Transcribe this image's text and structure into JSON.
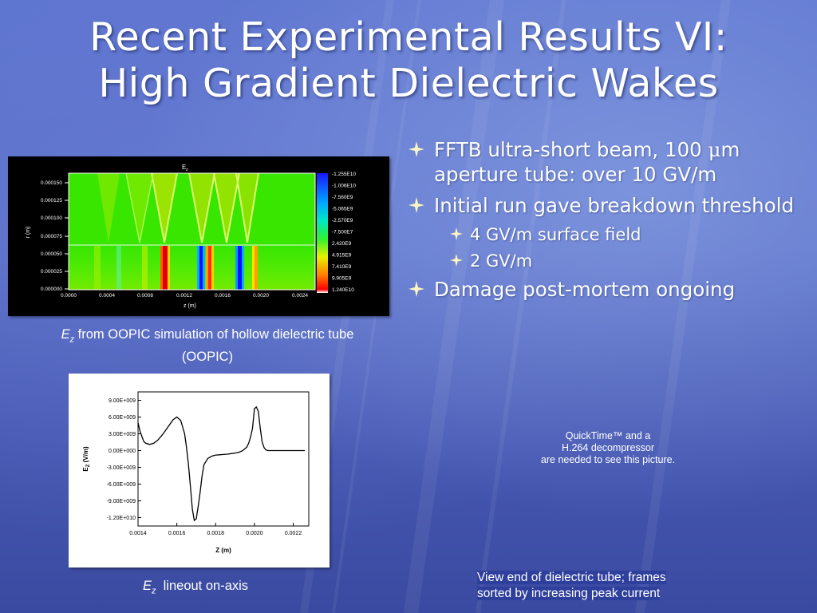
{
  "slide": {
    "title_line1": "Recent Experimental Results VI:",
    "title_line2": "High Gradient Dielectric Wakes"
  },
  "bullets": [
    {
      "level": 1,
      "text_before": "FFTB ultra-short beam, 100 ",
      "text_mu": "μ",
      "text_after": "m aperture tube: over 10 GV/m"
    },
    {
      "level": 1,
      "text": "Initial run gave breakdown threshold"
    },
    {
      "level": 2,
      "text": "4 GV/m surface field"
    },
    {
      "level": 2,
      "text": "2 GV/m"
    },
    {
      "level": 1,
      "text": "Damage post-mortem ongoing"
    }
  ],
  "sim_plot": {
    "title_main": "E",
    "title_sub": "z",
    "xlabel": "z (m)",
    "ylabel": "r (m)",
    "x_ticks": [
      "0.0000",
      "0.0004",
      "0.0008",
      "0.0012",
      "0.0016",
      "0.0020",
      "0.0024"
    ],
    "y_ticks": [
      "0.000150",
      "0.000125",
      "0.000100",
      "0.000075",
      "0.000050",
      "0.000025",
      "0.000000"
    ],
    "colorbar_labels": [
      "-1.255E10",
      "-1.006E10",
      "-7.560E9",
      "-5.065E9",
      "-2.570E9",
      "-7.500E7",
      "2.420E9",
      "4.915E9",
      "7.410E9",
      "9.905E9",
      "1.240E10"
    ]
  },
  "caption_sim": {
    "italic_e": "E",
    "italic_sub": "z",
    "text": " from OOPIC simulation of hollow dielectric tube (OOPIC)"
  },
  "chart_data": {
    "type": "line",
    "title": "",
    "xlabel": "Z (m)",
    "ylabel_main": "E",
    "ylabel_sub": "Z",
    "ylabel_unit": " (V/m)",
    "xlim": [
      0.0014,
      0.00228
    ],
    "ylim": [
      -13500000000.0,
      10500000000.0
    ],
    "x_tick_values": [
      0.0014,
      0.0016,
      0.0018,
      0.002,
      0.0022
    ],
    "x_tick_labels": [
      "0.0014",
      "0.0016",
      "0.0018",
      "0.0020",
      "0.0022"
    ],
    "y_tick_values": [
      9000000000.0,
      6000000000.0,
      3000000000.0,
      0.0,
      -3000000000.0,
      -6000000000.0,
      -9000000000.0,
      -12000000000.0
    ],
    "y_tick_labels": [
      "9.00E+009",
      "6.00E+009",
      "3.00E+009",
      "0.00E+000",
      "-3.00E+009",
      "-6.00E+009",
      "-9.00E+009",
      "-1.20E+010"
    ],
    "series": [
      {
        "x": [
          0.0014,
          0.00141,
          0.00142,
          0.00143,
          0.00144,
          0.00146,
          0.00148,
          0.0015,
          0.00152,
          0.00154,
          0.00156,
          0.00158,
          0.0016,
          0.00162,
          0.00164,
          0.00165,
          0.00166,
          0.00167,
          0.00168,
          0.00169,
          0.0017,
          0.00171,
          0.00172,
          0.00173,
          0.00174,
          0.00176,
          0.00178,
          0.0018,
          0.00182,
          0.00184,
          0.00186,
          0.00188,
          0.0019,
          0.00192,
          0.00194,
          0.00196,
          0.00197,
          0.00198,
          0.00199,
          0.002,
          0.00201,
          0.00202,
          0.00203,
          0.00204,
          0.00205,
          0.00206,
          0.00207,
          0.00208,
          0.0021,
          0.00212,
          0.00214,
          0.00216,
          0.00218,
          0.0022,
          0.00222,
          0.00224,
          0.00226
        ],
        "y": [
          5000000000.0,
          3500000000.0,
          2500000000.0,
          1600000000.0,
          1300000000.0,
          1100000000.0,
          1300000000.0,
          1800000000.0,
          2600000000.0,
          3500000000.0,
          4500000000.0,
          5500000000.0,
          6000000000.0,
          5400000000.0,
          3000000000.0,
          500000000.0,
          -2500000000.0,
          -6500000000.0,
          -10500000000.0,
          -12500000000.0,
          -12200000000.0,
          -10000000000.0,
          -7500000000.0,
          -4500000000.0,
          -2500000000.0,
          -1400000000.0,
          -1000000000.0,
          -800000000.0,
          -750000000.0,
          -700000000.0,
          -650000000.0,
          -550000000.0,
          -450000000.0,
          -300000000.0,
          0.0,
          600000000.0,
          1300000000.0,
          2400000000.0,
          4000000000.0,
          7500000000.0,
          7800000000.0,
          7000000000.0,
          4000000000.0,
          1500000000.0,
          500000000.0,
          100000000.0,
          0.0,
          0.0,
          0.0,
          0.0,
          0.0,
          0.0,
          0.0,
          0.0,
          0.0,
          0.0,
          0.0
        ]
      }
    ]
  },
  "caption_lineout": {
    "italic_e": "E",
    "italic_sub": "z",
    "text": "  lineout on-axis"
  },
  "quicktime": {
    "line1": "QuickTime™ and a",
    "line2": "H.264 decompressor",
    "line3": "are needed to see this picture."
  },
  "video_caption": {
    "line1": "View end of dielectric tube; frames",
    "line2": "sorted by increasing peak current"
  }
}
